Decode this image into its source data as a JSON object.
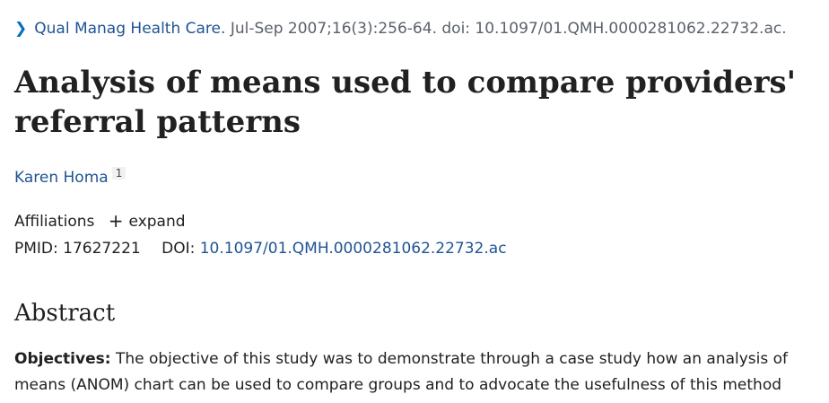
{
  "citation": {
    "journal": "Qual Manag Health Care.",
    "details": "Jul-Sep 2007;16(3):256-64. doi: 10.1097/01.QMH.0000281062.22732.ac."
  },
  "article": {
    "title": "Analysis of means used to compare providers' referral patterns"
  },
  "authors": [
    {
      "name": "Karen Homa",
      "affiliation_ref": "1"
    }
  ],
  "affiliations": {
    "label": "Affiliations",
    "expand_label": "expand"
  },
  "identifiers": {
    "pmid_label": "PMID:",
    "pmid": "17627221",
    "doi_label": "DOI:",
    "doi": "10.1097/01.QMH.0000281062.22732.ac"
  },
  "abstract": {
    "heading": "Abstract",
    "objectives_label": "Objectives:",
    "objectives_text": "The objective of this study was to demonstrate through a case study how an analysis of means (ANOM) chart can be used to compare groups and to advocate the usefulness of this method"
  },
  "colors": {
    "link": "#205493",
    "text": "#212121",
    "muted": "#5b616b"
  }
}
